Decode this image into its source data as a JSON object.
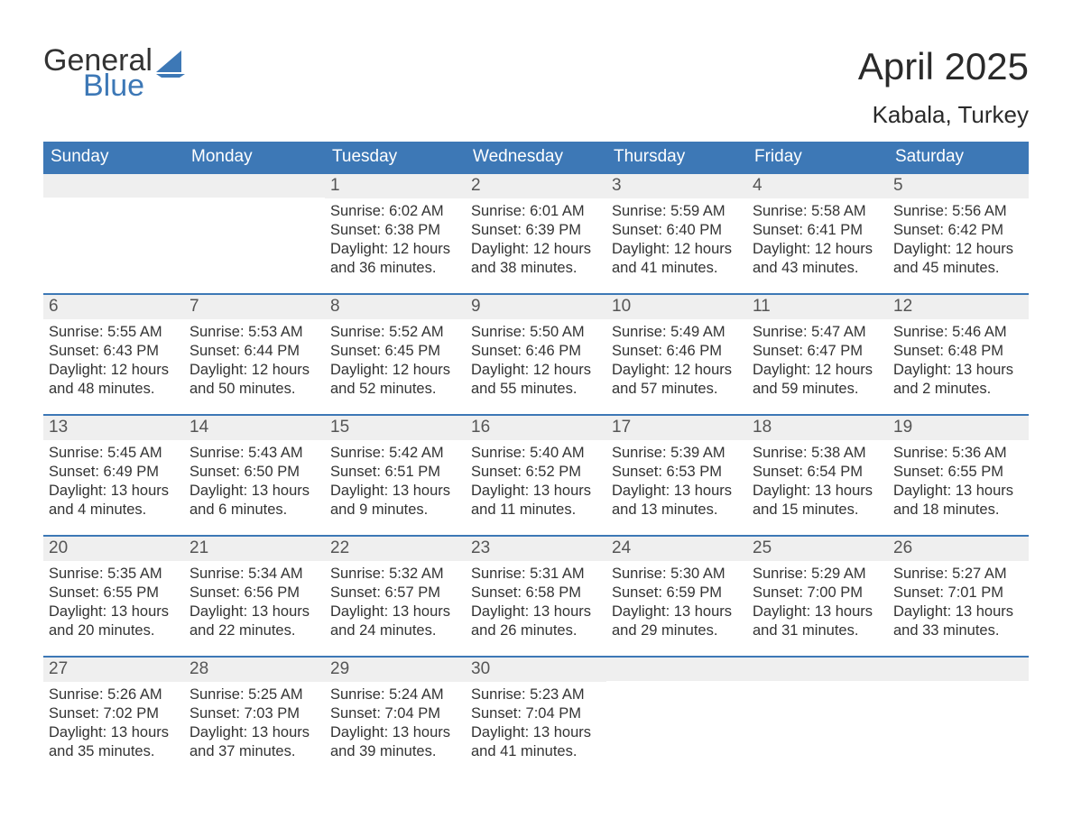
{
  "logo": {
    "text1": "General",
    "text2": "Blue"
  },
  "title": "April 2025",
  "location": "Kabala, Turkey",
  "colors": {
    "header_bg": "#3d78b6",
    "header_fg": "#ffffff",
    "daynum_bg": "#efefef",
    "week_border": "#3d78b6",
    "text": "#333333",
    "logo_blue": "#3d78b6"
  },
  "day_headers": [
    "Sunday",
    "Monday",
    "Tuesday",
    "Wednesday",
    "Thursday",
    "Friday",
    "Saturday"
  ],
  "weeks": [
    [
      {
        "n": "",
        "sunrise": "",
        "sunset": "",
        "daylight": ""
      },
      {
        "n": "",
        "sunrise": "",
        "sunset": "",
        "daylight": ""
      },
      {
        "n": "1",
        "sunrise": "Sunrise: 6:02 AM",
        "sunset": "Sunset: 6:38 PM",
        "daylight": "Daylight: 12 hours and 36 minutes."
      },
      {
        "n": "2",
        "sunrise": "Sunrise: 6:01 AM",
        "sunset": "Sunset: 6:39 PM",
        "daylight": "Daylight: 12 hours and 38 minutes."
      },
      {
        "n": "3",
        "sunrise": "Sunrise: 5:59 AM",
        "sunset": "Sunset: 6:40 PM",
        "daylight": "Daylight: 12 hours and 41 minutes."
      },
      {
        "n": "4",
        "sunrise": "Sunrise: 5:58 AM",
        "sunset": "Sunset: 6:41 PM",
        "daylight": "Daylight: 12 hours and 43 minutes."
      },
      {
        "n": "5",
        "sunrise": "Sunrise: 5:56 AM",
        "sunset": "Sunset: 6:42 PM",
        "daylight": "Daylight: 12 hours and 45 minutes."
      }
    ],
    [
      {
        "n": "6",
        "sunrise": "Sunrise: 5:55 AM",
        "sunset": "Sunset: 6:43 PM",
        "daylight": "Daylight: 12 hours and 48 minutes."
      },
      {
        "n": "7",
        "sunrise": "Sunrise: 5:53 AM",
        "sunset": "Sunset: 6:44 PM",
        "daylight": "Daylight: 12 hours and 50 minutes."
      },
      {
        "n": "8",
        "sunrise": "Sunrise: 5:52 AM",
        "sunset": "Sunset: 6:45 PM",
        "daylight": "Daylight: 12 hours and 52 minutes."
      },
      {
        "n": "9",
        "sunrise": "Sunrise: 5:50 AM",
        "sunset": "Sunset: 6:46 PM",
        "daylight": "Daylight: 12 hours and 55 minutes."
      },
      {
        "n": "10",
        "sunrise": "Sunrise: 5:49 AM",
        "sunset": "Sunset: 6:46 PM",
        "daylight": "Daylight: 12 hours and 57 minutes."
      },
      {
        "n": "11",
        "sunrise": "Sunrise: 5:47 AM",
        "sunset": "Sunset: 6:47 PM",
        "daylight": "Daylight: 12 hours and 59 minutes."
      },
      {
        "n": "12",
        "sunrise": "Sunrise: 5:46 AM",
        "sunset": "Sunset: 6:48 PM",
        "daylight": "Daylight: 13 hours and 2 minutes."
      }
    ],
    [
      {
        "n": "13",
        "sunrise": "Sunrise: 5:45 AM",
        "sunset": "Sunset: 6:49 PM",
        "daylight": "Daylight: 13 hours and 4 minutes."
      },
      {
        "n": "14",
        "sunrise": "Sunrise: 5:43 AM",
        "sunset": "Sunset: 6:50 PM",
        "daylight": "Daylight: 13 hours and 6 minutes."
      },
      {
        "n": "15",
        "sunrise": "Sunrise: 5:42 AM",
        "sunset": "Sunset: 6:51 PM",
        "daylight": "Daylight: 13 hours and 9 minutes."
      },
      {
        "n": "16",
        "sunrise": "Sunrise: 5:40 AM",
        "sunset": "Sunset: 6:52 PM",
        "daylight": "Daylight: 13 hours and 11 minutes."
      },
      {
        "n": "17",
        "sunrise": "Sunrise: 5:39 AM",
        "sunset": "Sunset: 6:53 PM",
        "daylight": "Daylight: 13 hours and 13 minutes."
      },
      {
        "n": "18",
        "sunrise": "Sunrise: 5:38 AM",
        "sunset": "Sunset: 6:54 PM",
        "daylight": "Daylight: 13 hours and 15 minutes."
      },
      {
        "n": "19",
        "sunrise": "Sunrise: 5:36 AM",
        "sunset": "Sunset: 6:55 PM",
        "daylight": "Daylight: 13 hours and 18 minutes."
      }
    ],
    [
      {
        "n": "20",
        "sunrise": "Sunrise: 5:35 AM",
        "sunset": "Sunset: 6:55 PM",
        "daylight": "Daylight: 13 hours and 20 minutes."
      },
      {
        "n": "21",
        "sunrise": "Sunrise: 5:34 AM",
        "sunset": "Sunset: 6:56 PM",
        "daylight": "Daylight: 13 hours and 22 minutes."
      },
      {
        "n": "22",
        "sunrise": "Sunrise: 5:32 AM",
        "sunset": "Sunset: 6:57 PM",
        "daylight": "Daylight: 13 hours and 24 minutes."
      },
      {
        "n": "23",
        "sunrise": "Sunrise: 5:31 AM",
        "sunset": "Sunset: 6:58 PM",
        "daylight": "Daylight: 13 hours and 26 minutes."
      },
      {
        "n": "24",
        "sunrise": "Sunrise: 5:30 AM",
        "sunset": "Sunset: 6:59 PM",
        "daylight": "Daylight: 13 hours and 29 minutes."
      },
      {
        "n": "25",
        "sunrise": "Sunrise: 5:29 AM",
        "sunset": "Sunset: 7:00 PM",
        "daylight": "Daylight: 13 hours and 31 minutes."
      },
      {
        "n": "26",
        "sunrise": "Sunrise: 5:27 AM",
        "sunset": "Sunset: 7:01 PM",
        "daylight": "Daylight: 13 hours and 33 minutes."
      }
    ],
    [
      {
        "n": "27",
        "sunrise": "Sunrise: 5:26 AM",
        "sunset": "Sunset: 7:02 PM",
        "daylight": "Daylight: 13 hours and 35 minutes."
      },
      {
        "n": "28",
        "sunrise": "Sunrise: 5:25 AM",
        "sunset": "Sunset: 7:03 PM",
        "daylight": "Daylight: 13 hours and 37 minutes."
      },
      {
        "n": "29",
        "sunrise": "Sunrise: 5:24 AM",
        "sunset": "Sunset: 7:04 PM",
        "daylight": "Daylight: 13 hours and 39 minutes."
      },
      {
        "n": "30",
        "sunrise": "Sunrise: 5:23 AM",
        "sunset": "Sunset: 7:04 PM",
        "daylight": "Daylight: 13 hours and 41 minutes."
      },
      {
        "n": "",
        "sunrise": "",
        "sunset": "",
        "daylight": ""
      },
      {
        "n": "",
        "sunrise": "",
        "sunset": "",
        "daylight": ""
      },
      {
        "n": "",
        "sunrise": "",
        "sunset": "",
        "daylight": ""
      }
    ]
  ]
}
